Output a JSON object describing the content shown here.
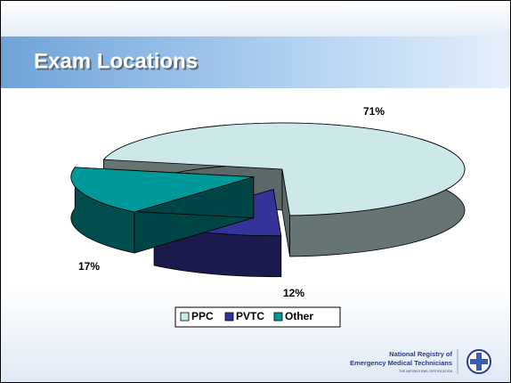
{
  "title": "Exam Locations",
  "chart_data": {
    "type": "pie3d",
    "categories": [
      "PPC",
      "PVTC",
      "Other"
    ],
    "values": [
      71,
      12,
      17
    ],
    "value_labels": [
      "71%",
      "12%",
      "17%"
    ],
    "colors": [
      "#cce8e8",
      "#333399",
      "#009999"
    ],
    "legend": "bottom"
  },
  "logo": {
    "line1": "National Registry of",
    "line2": "Emergency Medical Technicians",
    "tagline": "THE NATION'S EMS CERTIFICATION"
  }
}
